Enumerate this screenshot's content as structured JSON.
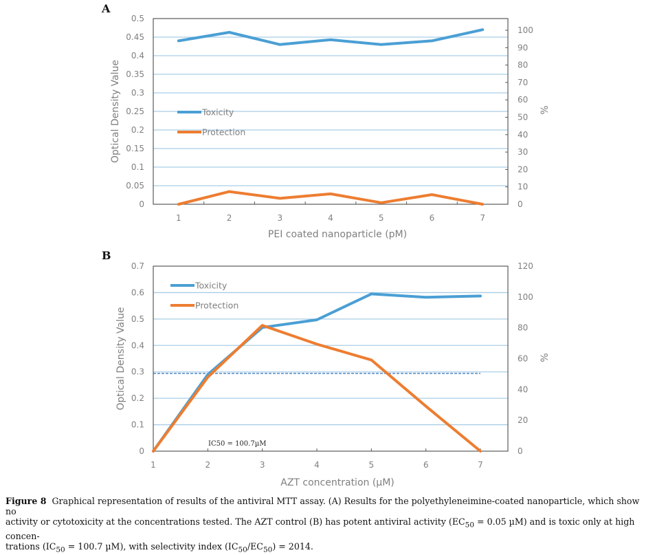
{
  "chart_data": [
    {
      "panel": "A",
      "type": "line",
      "title": "",
      "xlabel": "PEI coated nanoparticle (pM)",
      "ylabel": "Optical Density Value",
      "y2label": "%",
      "categories": [
        "1",
        "2",
        "3",
        "4",
        "5",
        "6",
        "7"
      ],
      "ylim": [
        0,
        0.5
      ],
      "yticks": [
        "0",
        "0.05",
        "0.1",
        "0.15",
        "0.2",
        "0.25",
        "0.3",
        "0.35",
        "0.4",
        "0.45",
        "0.5"
      ],
      "y2lim": [
        0,
        100
      ],
      "y2ticks": [
        "0",
        "10",
        "20",
        "30",
        "40",
        "50",
        "60",
        "70",
        "80",
        "90",
        "100"
      ],
      "grid": true,
      "legend_position": "center-left",
      "series": [
        {
          "name": "Toxicity",
          "color": "#4a9fd4",
          "values": [
            0.44,
            0.463,
            0.43,
            0.443,
            0.43,
            0.44,
            0.47
          ]
        },
        {
          "name": "Protection",
          "color": "#ed7d31",
          "values": [
            0.0,
            0.034,
            0.016,
            0.028,
            0.004,
            0.026,
            0.0
          ]
        }
      ]
    },
    {
      "panel": "B",
      "type": "line",
      "title": "",
      "xlabel": "AZT concentration (µM)",
      "ylabel": "Optical Density Value",
      "y2label": "%",
      "categories": [
        "1",
        "2",
        "3",
        "4",
        "5",
        "6",
        "7"
      ],
      "ylim": [
        0,
        0.7
      ],
      "yticks": [
        "0",
        "0.1",
        "0.2",
        "0.3",
        "0.4",
        "0.5",
        "0.6",
        "0.7"
      ],
      "y2lim": [
        0,
        120
      ],
      "y2ticks": [
        "0",
        "20",
        "40",
        "60",
        "80",
        "100",
        "120"
      ],
      "grid": true,
      "legend_position": "top-left",
      "series": [
        {
          "name": "Toxicity",
          "color": "#4a9fd4",
          "values": [
            0.0,
            0.29,
            0.468,
            0.497,
            0.595,
            0.582,
            0.587
          ]
        },
        {
          "name": "Protection",
          "color": "#ed7d31",
          "values": [
            0.0,
            0.28,
            0.476,
            0.405,
            0.345,
            0.17,
            0.0
          ]
        }
      ],
      "reference_line": {
        "y": 0.294,
        "style": "dashed",
        "color": "#2e6fb5"
      },
      "annotation": "IC50 = 100.7µM"
    }
  ],
  "panel_labels": [
    "A",
    "B"
  ],
  "caption": {
    "label": "Figure 8",
    "line1": "Graphical representation of results of the antiviral MTT assay. (A) Results for the polyethyleneimine-coated nanoparticle, which show no",
    "line2a": "activity or cytotoxicity at the concentrations tested. The AZT control (B) has potent antiviral activity (EC",
    "line2b": " = 0.05 µM) and is toxic only at high concen-",
    "line3a": "trations (IC",
    "line3b": " = 100.7 µM), with selectivity index (IC",
    "line3c": "/EC",
    "line3d": ") = 2014.",
    "sub50": "50"
  }
}
